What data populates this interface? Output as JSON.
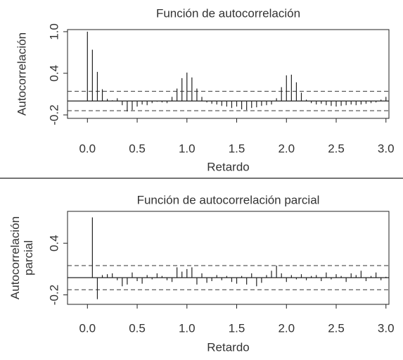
{
  "chart_data": [
    {
      "type": "acf",
      "title": "Función de autocorrelación",
      "xlabel": "Retardo",
      "ylabel": [
        "Autocorrelación"
      ],
      "x": [
        0,
        0.05,
        0.1,
        0.15,
        0.2,
        0.25,
        0.3,
        0.35,
        0.4,
        0.45,
        0.5,
        0.55,
        0.6,
        0.65,
        0.7,
        0.75,
        0.8,
        0.85,
        0.9,
        0.95,
        1.0,
        1.05,
        1.1,
        1.15,
        1.2,
        1.25,
        1.3,
        1.35,
        1.4,
        1.45,
        1.5,
        1.55,
        1.6,
        1.65,
        1.7,
        1.75,
        1.8,
        1.85,
        1.9,
        1.95,
        2.0,
        2.05,
        2.1,
        2.15,
        2.2,
        2.25,
        2.3,
        2.35,
        2.4,
        2.45,
        2.5,
        2.55,
        2.6,
        2.65,
        2.7,
        2.75,
        2.8,
        2.85,
        2.9,
        2.95,
        3.0
      ],
      "values": [
        1.0,
        0.74,
        0.42,
        0.17,
        0.03,
        0.01,
        0.04,
        -0.06,
        -0.15,
        -0.13,
        -0.08,
        -0.05,
        -0.06,
        -0.03,
        -0.01,
        -0.02,
        -0.03,
        0.06,
        0.18,
        0.33,
        0.41,
        0.34,
        0.18,
        0.06,
        -0.02,
        -0.04,
        -0.05,
        -0.07,
        -0.08,
        -0.1,
        -0.08,
        -0.12,
        -0.13,
        -0.1,
        -0.09,
        -0.07,
        -0.06,
        -0.05,
        0.04,
        0.2,
        0.37,
        0.38,
        0.27,
        0.12,
        0.02,
        -0.03,
        -0.05,
        -0.04,
        -0.06,
        -0.07,
        -0.08,
        -0.07,
        -0.06,
        -0.05,
        -0.06,
        -0.05,
        -0.04,
        -0.03,
        -0.02,
        0.02,
        0.06
      ],
      "color": "#222222",
      "ci": [
        0.14,
        -0.14
      ],
      "xlim": [
        -0.2,
        3.03
      ],
      "ylim": [
        -0.25,
        1.03
      ],
      "xticks": [
        {
          "value": 0,
          "label": "0.0"
        },
        0.5,
        {
          "value": 1,
          "label": "1.0"
        },
        1.5,
        {
          "value": 2,
          "label": "2.0"
        },
        2.5,
        {
          "value": 3,
          "label": "3.0"
        }
      ],
      "yticks": [
        -0.2,
        0.4,
        {
          "value": 1,
          "label": "1.0"
        }
      ]
    },
    {
      "type": "acf",
      "title": "Función de autocorrelación parcial",
      "xlabel": "Retardo",
      "ylabel": [
        "Autocorrelación",
        "parcial"
      ],
      "x": [
        0.05,
        0.1,
        0.15,
        0.2,
        0.25,
        0.3,
        0.35,
        0.4,
        0.45,
        0.5,
        0.55,
        0.6,
        0.65,
        0.7,
        0.75,
        0.8,
        0.85,
        0.9,
        0.95,
        1.0,
        1.05,
        1.1,
        1.15,
        1.2,
        1.25,
        1.3,
        1.35,
        1.4,
        1.45,
        1.5,
        1.55,
        1.6,
        1.65,
        1.7,
        1.75,
        1.8,
        1.85,
        1.9,
        1.95,
        2.0,
        2.05,
        2.1,
        2.15,
        2.2,
        2.25,
        2.3,
        2.35,
        2.4,
        2.45,
        2.5,
        2.55,
        2.6,
        2.65,
        2.7,
        2.75,
        2.8,
        2.85,
        2.9,
        2.95,
        3.0
      ],
      "values": [
        0.7,
        -0.25,
        0.03,
        0.04,
        0.05,
        -0.03,
        -0.1,
        -0.08,
        0.06,
        -0.04,
        -0.07,
        0.03,
        -0.02,
        0.05,
        0.02,
        -0.03,
        -0.05,
        0.12,
        0.07,
        0.1,
        0.12,
        -0.08,
        0.05,
        -0.06,
        -0.04,
        0.03,
        -0.03,
        0.02,
        -0.05,
        -0.07,
        0.02,
        -0.08,
        0.05,
        -0.1,
        -0.06,
        0.03,
        0.08,
        0.14,
        0.05,
        -0.05,
        0.03,
        -0.02,
        0.04,
        -0.03,
        0.02,
        0.03,
        -0.04,
        0.06,
        -0.02,
        0.04,
        0.02,
        -0.05,
        0.05,
        0.03,
        0.08,
        -0.04,
        0.02,
        0.06,
        -0.03,
        0.01
      ],
      "color": "#222222",
      "ci": [
        0.14,
        -0.14
      ],
      "xlim": [
        -0.2,
        3.03
      ],
      "ylim": [
        -0.31,
        0.77
      ],
      "xticks": [
        {
          "value": 0,
          "label": "0.0"
        },
        0.5,
        {
          "value": 1,
          "label": "1.0"
        },
        1.5,
        {
          "value": 2,
          "label": "2.0"
        },
        2.5,
        {
          "value": 3,
          "label": "3.0"
        }
      ],
      "yticks": [
        -0.2,
        0.4
      ]
    }
  ]
}
